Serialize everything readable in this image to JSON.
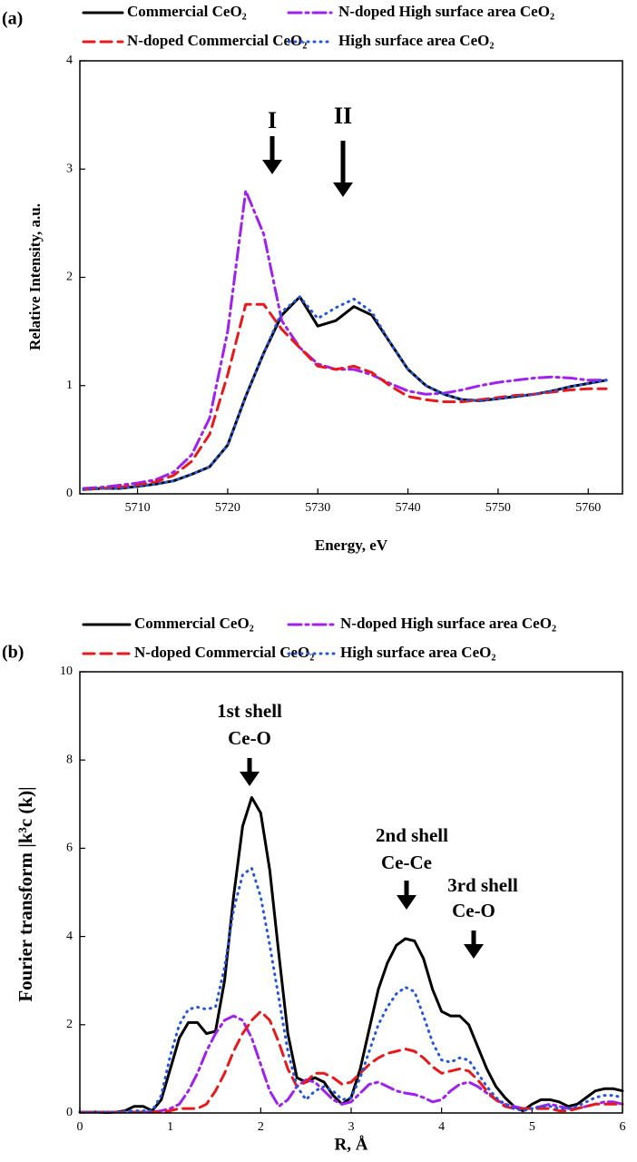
{
  "chart_data": [
    {
      "type": "line",
      "panel_label": "(a)",
      "x_label": "Energy, eV",
      "y_label": "Relative Intensity, a.u.",
      "x": [
        5704,
        5706,
        5708,
        5710,
        5712,
        5714,
        5716,
        5718,
        5720,
        5722,
        5724,
        5726,
        5728,
        5730,
        5732,
        5734,
        5736,
        5738,
        5740,
        5742,
        5744,
        5746,
        5748,
        5750,
        5752,
        5754,
        5756,
        5758,
        5760,
        5762
      ],
      "series": [
        {
          "name": "Commercial CeO₂",
          "color": "#000000",
          "dash": "solid",
          "values": [
            0.04,
            0.05,
            0.05,
            0.07,
            0.09,
            0.12,
            0.18,
            0.25,
            0.45,
            0.9,
            1.3,
            1.65,
            1.82,
            1.55,
            1.6,
            1.73,
            1.65,
            1.4,
            1.15,
            1.0,
            0.92,
            0.87,
            0.86,
            0.88,
            0.9,
            0.92,
            0.95,
            0.99,
            1.02,
            1.05
          ]
        },
        {
          "name": "N-doped High surface area CeO₂",
          "color": "#a020f0",
          "dash": "dashdot",
          "values": [
            0.05,
            0.06,
            0.08,
            0.1,
            0.13,
            0.2,
            0.36,
            0.7,
            1.5,
            2.8,
            2.4,
            1.6,
            1.35,
            1.2,
            1.15,
            1.15,
            1.1,
            1.02,
            0.95,
            0.92,
            0.93,
            0.96,
            1.0,
            1.03,
            1.05,
            1.07,
            1.08,
            1.07,
            1.05,
            1.05
          ]
        },
        {
          "name": "N-doped Commercial CeO₂",
          "color": "#e8191b",
          "dash": "dash",
          "values": [
            0.04,
            0.05,
            0.06,
            0.08,
            0.11,
            0.17,
            0.3,
            0.55,
            1.1,
            1.75,
            1.75,
            1.52,
            1.35,
            1.18,
            1.15,
            1.18,
            1.12,
            1.0,
            0.9,
            0.87,
            0.85,
            0.85,
            0.87,
            0.89,
            0.91,
            0.92,
            0.94,
            0.96,
            0.97,
            0.97
          ]
        },
        {
          "name": "High surface area CeO₂",
          "color": "#2255e0",
          "dash": "dot",
          "values": [
            0.04,
            0.05,
            0.05,
            0.07,
            0.09,
            0.12,
            0.18,
            0.25,
            0.45,
            0.9,
            1.3,
            1.68,
            1.82,
            1.62,
            1.72,
            1.8,
            1.68,
            1.4,
            1.15,
            1.0,
            0.92,
            0.87,
            0.86,
            0.88,
            0.9,
            0.92,
            0.95,
            0.99,
            1.02,
            1.05
          ]
        }
      ],
      "xlim": [
        5703.6,
        5763.8
      ],
      "xticks": [
        5710,
        5720,
        5730,
        5740,
        5750,
        5760
      ],
      "ylim": [
        0,
        4
      ],
      "yticks": [
        0,
        1,
        2,
        3,
        4
      ],
      "annotations": [
        [
          "I"
        ],
        [
          "II"
        ]
      ]
    },
    {
      "type": "line",
      "panel_label": "(b)",
      "x_label": "R, Å",
      "y_label": "Fourier transform |k³c (k)|",
      "x": [
        0,
        0.1,
        0.2,
        0.3,
        0.4,
        0.5,
        0.6,
        0.7,
        0.8,
        0.9,
        1,
        1.1,
        1.2,
        1.3,
        1.4,
        1.5,
        1.6,
        1.7,
        1.8,
        1.9,
        2,
        2.1,
        2.2,
        2.3,
        2.4,
        2.5,
        2.6,
        2.7,
        2.8,
        2.9,
        3,
        3.1,
        3.2,
        3.3,
        3.4,
        3.5,
        3.6,
        3.7,
        3.8,
        3.9,
        4,
        4.1,
        4.2,
        4.3,
        4.4,
        4.5,
        4.6,
        4.7,
        4.8,
        4.9,
        5,
        5.1,
        5.2,
        5.3,
        5.4,
        5.5,
        5.6,
        5.7,
        5.8,
        5.9,
        6
      ],
      "series": [
        {
          "name": "Commercial CeO₂",
          "color": "#000000",
          "dash": "solid",
          "values": [
            0.02,
            0.02,
            0.02,
            0.01,
            0.02,
            0.05,
            0.15,
            0.15,
            0.05,
            0.3,
            1.0,
            1.7,
            2.05,
            2.05,
            1.8,
            1.85,
            3.0,
            4.9,
            6.5,
            7.15,
            6.8,
            5.5,
            3.6,
            1.8,
            0.8,
            0.7,
            0.8,
            0.7,
            0.4,
            0.2,
            0.35,
            1.0,
            1.9,
            2.8,
            3.4,
            3.8,
            3.95,
            3.9,
            3.5,
            2.8,
            2.3,
            2.2,
            2.2,
            2.0,
            1.5,
            1.0,
            0.6,
            0.35,
            0.15,
            0.05,
            0.2,
            0.3,
            0.3,
            0.25,
            0.15,
            0.2,
            0.35,
            0.5,
            0.55,
            0.55,
            0.5
          ]
        },
        {
          "name": "N-doped High surface area CeO₂",
          "color": "#a020f0",
          "dash": "dashdot",
          "values": [
            0.02,
            0.02,
            0.02,
            0.02,
            0.02,
            0.02,
            0.02,
            0.02,
            0.02,
            0.05,
            0.1,
            0.2,
            0.5,
            0.9,
            1.4,
            1.8,
            2.1,
            2.2,
            2.1,
            1.7,
            1.1,
            0.5,
            0.15,
            0.3,
            0.6,
            0.75,
            0.7,
            0.5,
            0.3,
            0.2,
            0.25,
            0.45,
            0.65,
            0.7,
            0.6,
            0.5,
            0.45,
            0.42,
            0.35,
            0.25,
            0.3,
            0.5,
            0.65,
            0.7,
            0.6,
            0.45,
            0.3,
            0.2,
            0.15,
            0.1,
            0.1,
            0.15,
            0.2,
            0.15,
            0.1,
            0.1,
            0.15,
            0.2,
            0.25,
            0.25,
            0.2
          ]
        },
        {
          "name": "N-doped Commercial CeO₂",
          "color": "#e8191b",
          "dash": "dash",
          "values": [
            0.02,
            0.02,
            0.02,
            0.02,
            0.02,
            0.02,
            0.02,
            0.02,
            0.02,
            0.02,
            0.05,
            0.1,
            0.1,
            0.1,
            0.2,
            0.5,
            0.9,
            1.4,
            1.8,
            2.1,
            2.3,
            2.1,
            1.6,
            1.0,
            0.6,
            0.7,
            0.9,
            0.9,
            0.8,
            0.65,
            0.7,
            0.9,
            1.1,
            1.25,
            1.35,
            1.4,
            1.45,
            1.4,
            1.25,
            1.05,
            0.9,
            0.95,
            1.0,
            0.95,
            0.75,
            0.5,
            0.3,
            0.15,
            0.1,
            0.1,
            0.1,
            0.1,
            0.1,
            0.05,
            0.05,
            0.1,
            0.15,
            0.2,
            0.2,
            0.2,
            0.2
          ]
        },
        {
          "name": "High surface area CeO₂",
          "color": "#2255e0",
          "dash": "dot",
          "values": [
            0.02,
            0.02,
            0.02,
            0.02,
            0.02,
            0.03,
            0.05,
            0.05,
            0.05,
            0.4,
            1.3,
            2.0,
            2.35,
            2.4,
            2.35,
            2.4,
            3.3,
            4.6,
            5.4,
            5.55,
            4.9,
            3.8,
            2.6,
            1.4,
            0.6,
            0.3,
            0.5,
            0.6,
            0.5,
            0.3,
            0.35,
            0.8,
            1.4,
            2.0,
            2.4,
            2.7,
            2.85,
            2.75,
            2.2,
            1.6,
            1.2,
            1.15,
            1.25,
            1.2,
            0.9,
            0.6,
            0.35,
            0.2,
            0.1,
            0.05,
            0.1,
            0.15,
            0.15,
            0.1,
            0.1,
            0.15,
            0.25,
            0.35,
            0.4,
            0.4,
            0.35
          ]
        }
      ],
      "xlim": [
        0,
        6
      ],
      "xticks": [
        0,
        1,
        2,
        3,
        4,
        5,
        6
      ],
      "ylim": [
        0,
        10
      ],
      "yticks": [
        0,
        2,
        4,
        6,
        8,
        10
      ],
      "annotations": [
        [
          "1st shell",
          "Ce-O"
        ],
        [
          "2nd shell",
          "Ce-Ce"
        ],
        [
          "3rd shell",
          "Ce-O"
        ]
      ]
    }
  ]
}
